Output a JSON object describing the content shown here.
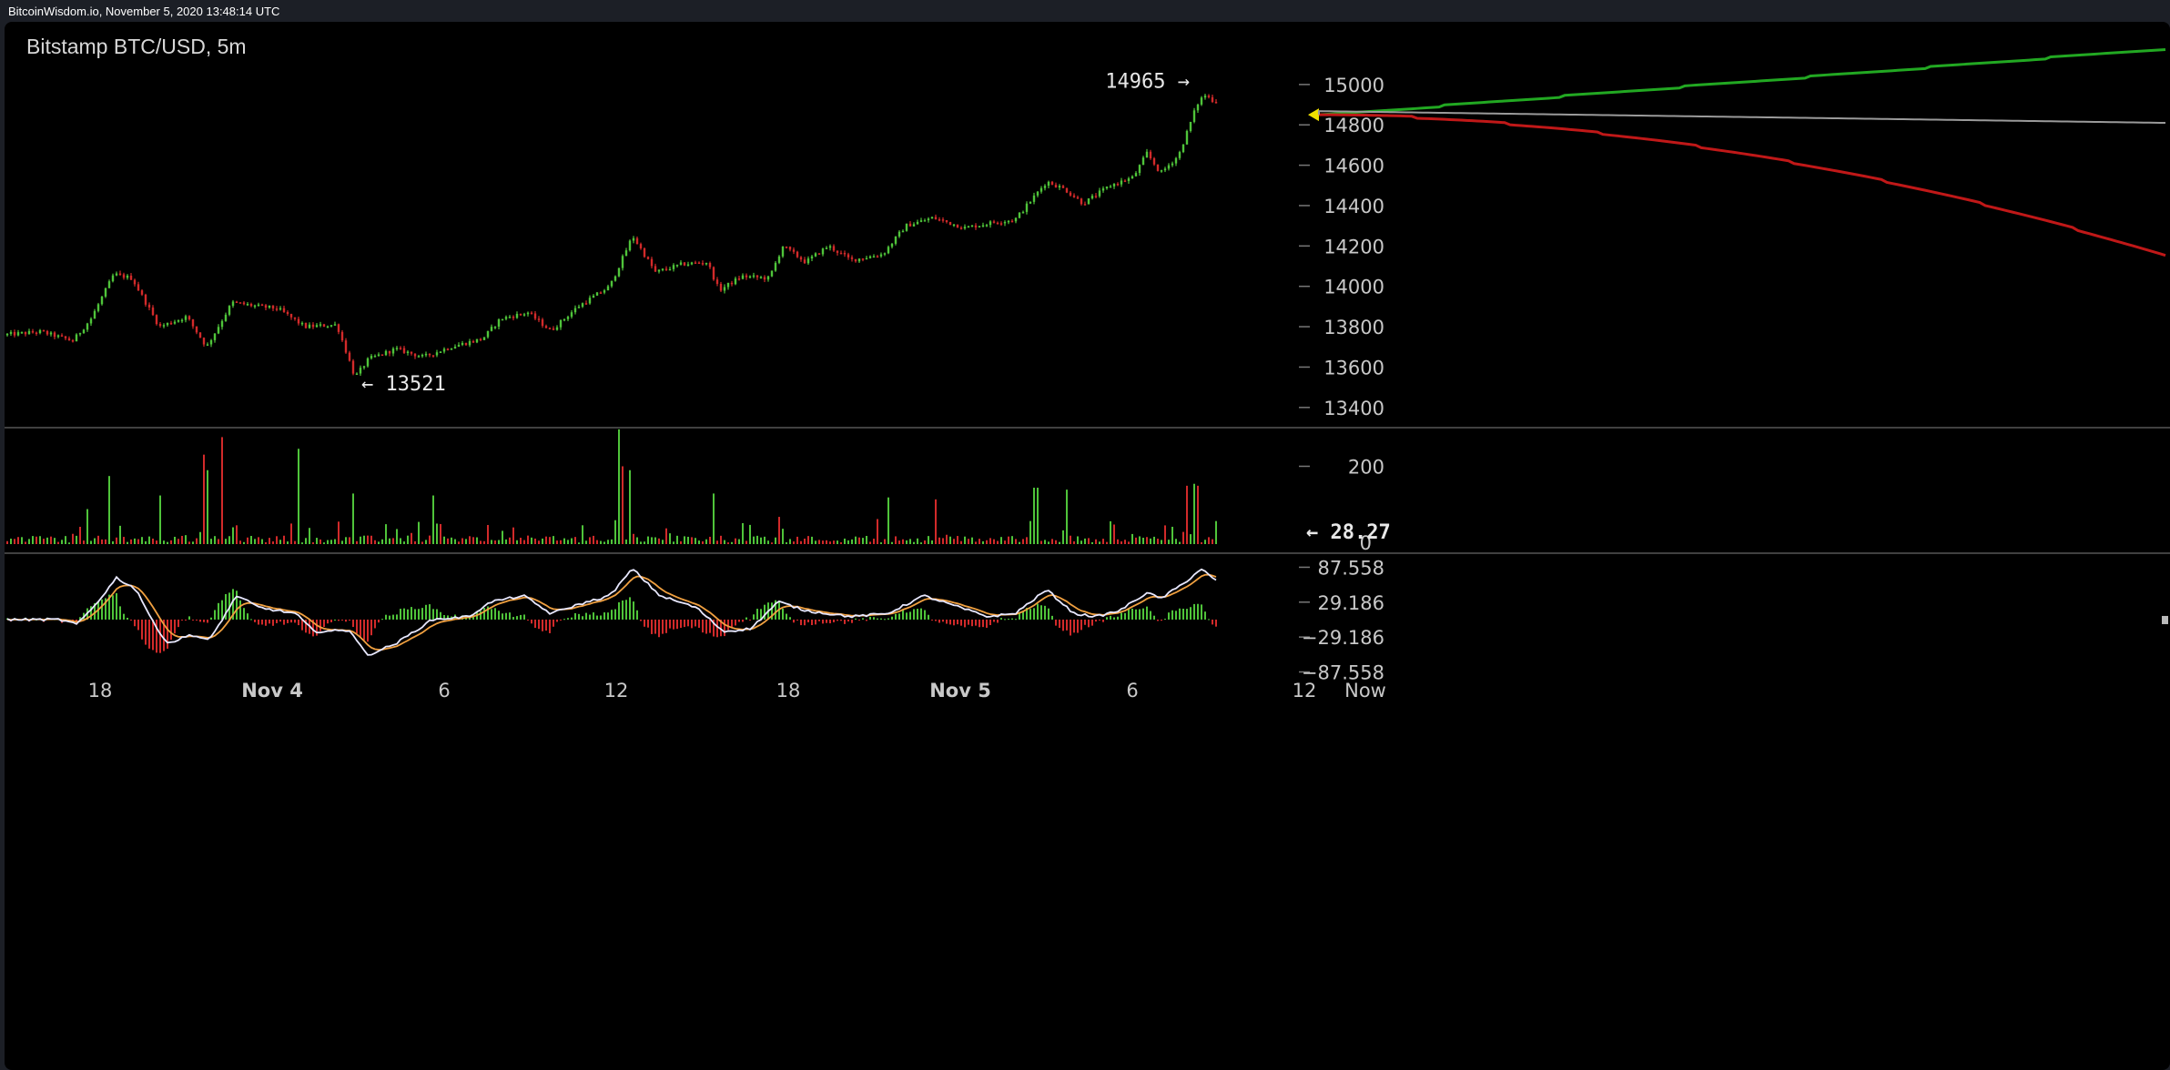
{
  "header": {
    "source_info": "BitcoinWisdom.io, November 5, 2020 13:48:14 UTC",
    "pair_title": "Bitstamp BTC/USD, 5m"
  },
  "colors": {
    "up": "#4fc43a",
    "down": "#d22a2a",
    "background": "#000000",
    "grid": "#2a2a2a",
    "depth_bid": "#22a822",
    "depth_ask": "#c01818",
    "depth_mid": "#9a9a9a",
    "current_marker": "#f0e000",
    "macd_line": "#e8e8ff",
    "signal_line": "#f0a040"
  },
  "chart_data": [
    {
      "type": "candlestick",
      "title": "Bitstamp BTC/USD, 5m",
      "y_ticks": [
        13400,
        13600,
        13800,
        14000,
        14200,
        14400,
        14600,
        14800,
        15000
      ],
      "ylim": [
        13300,
        15130
      ],
      "annotations": [
        {
          "label": "14965",
          "value": 14965,
          "arrow": "→",
          "at_time_label": "Nov 5 ~08:00"
        },
        {
          "label": "13521",
          "value": 13521,
          "arrow": "←",
          "at_time_label": "Nov 4 ~03:00"
        }
      ],
      "anchors": [
        {
          "t": 0,
          "v": 13760
        },
        {
          "t": 40,
          "v": 13775
        },
        {
          "t": 75,
          "v": 13730
        },
        {
          "t": 95,
          "v": 13840
        },
        {
          "t": 120,
          "v": 14060
        },
        {
          "t": 140,
          "v": 14040
        },
        {
          "t": 170,
          "v": 13800
        },
        {
          "t": 200,
          "v": 13850
        },
        {
          "t": 222,
          "v": 13700
        },
        {
          "t": 250,
          "v": 13920
        },
        {
          "t": 280,
          "v": 13900
        },
        {
          "t": 300,
          "v": 13890
        },
        {
          "t": 330,
          "v": 13800
        },
        {
          "t": 365,
          "v": 13810
        },
        {
          "t": 385,
          "v": 13550
        },
        {
          "t": 400,
          "v": 13640
        },
        {
          "t": 430,
          "v": 13690
        },
        {
          "t": 460,
          "v": 13650
        },
        {
          "t": 490,
          "v": 13700
        },
        {
          "t": 525,
          "v": 13740
        },
        {
          "t": 545,
          "v": 13840
        },
        {
          "t": 575,
          "v": 13870
        },
        {
          "t": 600,
          "v": 13780
        },
        {
          "t": 630,
          "v": 13900
        },
        {
          "t": 665,
          "v": 14000
        },
        {
          "t": 690,
          "v": 14250
        },
        {
          "t": 715,
          "v": 14070
        },
        {
          "t": 745,
          "v": 14110
        },
        {
          "t": 772,
          "v": 14120
        },
        {
          "t": 785,
          "v": 13980
        },
        {
          "t": 810,
          "v": 14050
        },
        {
          "t": 840,
          "v": 14040
        },
        {
          "t": 855,
          "v": 14200
        },
        {
          "t": 880,
          "v": 14120
        },
        {
          "t": 905,
          "v": 14200
        },
        {
          "t": 930,
          "v": 14130
        },
        {
          "t": 965,
          "v": 14160
        },
        {
          "t": 990,
          "v": 14300
        },
        {
          "t": 1020,
          "v": 14340
        },
        {
          "t": 1055,
          "v": 14290
        },
        {
          "t": 1090,
          "v": 14320
        },
        {
          "t": 1110,
          "v": 14330
        },
        {
          "t": 1145,
          "v": 14520
        },
        {
          "t": 1165,
          "v": 14480
        },
        {
          "t": 1185,
          "v": 14410
        },
        {
          "t": 1215,
          "v": 14500
        },
        {
          "t": 1240,
          "v": 14540
        },
        {
          "t": 1255,
          "v": 14660
        },
        {
          "t": 1270,
          "v": 14560
        },
        {
          "t": 1290,
          "v": 14650
        },
        {
          "t": 1310,
          "v": 14900
        },
        {
          "t": 1318,
          "v": 14950
        },
        {
          "t": 1328,
          "v": 14920
        }
      ],
      "candle_spacing_px": 4
    },
    {
      "type": "bar",
      "title": "Volume",
      "y_ticks": [
        0,
        200
      ],
      "current_value": "← 28.27",
      "tick_zero_label": "0",
      "ylim": [
        0,
        290
      ],
      "spikes": [
        {
          "t": 90,
          "v": 90
        },
        {
          "t": 116,
          "v": 175
        },
        {
          "t": 170,
          "v": 125
        },
        {
          "t": 218,
          "v": 230
        },
        {
          "t": 222,
          "v": 190
        },
        {
          "t": 240,
          "v": 275
        },
        {
          "t": 323,
          "v": 245
        },
        {
          "t": 383,
          "v": 285
        },
        {
          "t": 385,
          "v": 130
        },
        {
          "t": 470,
          "v": 125
        },
        {
          "t": 677,
          "v": 295
        },
        {
          "t": 681,
          "v": 200
        },
        {
          "t": 686,
          "v": 190
        },
        {
          "t": 779,
          "v": 130
        },
        {
          "t": 852,
          "v": 70
        },
        {
          "t": 970,
          "v": 120
        },
        {
          "t": 1022,
          "v": 115
        },
        {
          "t": 1131,
          "v": 145
        },
        {
          "t": 1137,
          "v": 145
        },
        {
          "t": 1166,
          "v": 140
        },
        {
          "t": 1298,
          "v": 150
        },
        {
          "t": 1308,
          "v": 155
        },
        {
          "t": 1311,
          "v": 150
        }
      ]
    },
    {
      "type": "line",
      "title": "MACD",
      "y_ticks": [
        87.558,
        29.186,
        -29.186,
        -87.558
      ],
      "y_tick_labels": [
        "87.558",
        "29.186",
        "−29.186",
        "−87.558"
      ],
      "ylim": [
        -102,
        108
      ],
      "macd_anchors": [
        {
          "t": 0,
          "v": 0
        },
        {
          "t": 60,
          "v": 0
        },
        {
          "t": 80,
          "v": -8
        },
        {
          "t": 100,
          "v": 25
        },
        {
          "t": 123,
          "v": 70
        },
        {
          "t": 145,
          "v": 50
        },
        {
          "t": 165,
          "v": -10
        },
        {
          "t": 180,
          "v": -40
        },
        {
          "t": 205,
          "v": -25
        },
        {
          "t": 225,
          "v": -35
        },
        {
          "t": 255,
          "v": 40
        },
        {
          "t": 280,
          "v": 20
        },
        {
          "t": 320,
          "v": 10
        },
        {
          "t": 340,
          "v": -20
        },
        {
          "t": 380,
          "v": -18
        },
        {
          "t": 398,
          "v": -60
        },
        {
          "t": 430,
          "v": -40
        },
        {
          "t": 470,
          "v": 0
        },
        {
          "t": 510,
          "v": 5
        },
        {
          "t": 535,
          "v": 30
        },
        {
          "t": 570,
          "v": 40
        },
        {
          "t": 600,
          "v": 10
        },
        {
          "t": 630,
          "v": 25
        },
        {
          "t": 665,
          "v": 40
        },
        {
          "t": 690,
          "v": 85
        },
        {
          "t": 720,
          "v": 40
        },
        {
          "t": 760,
          "v": 20
        },
        {
          "t": 790,
          "v": -20
        },
        {
          "t": 820,
          "v": -15
        },
        {
          "t": 850,
          "v": 30
        },
        {
          "t": 880,
          "v": 15
        },
        {
          "t": 930,
          "v": 5
        },
        {
          "t": 970,
          "v": 10
        },
        {
          "t": 1010,
          "v": 40
        },
        {
          "t": 1050,
          "v": 20
        },
        {
          "t": 1080,
          "v": 5
        },
        {
          "t": 1110,
          "v": 10
        },
        {
          "t": 1145,
          "v": 50
        },
        {
          "t": 1175,
          "v": 10
        },
        {
          "t": 1200,
          "v": 5
        },
        {
          "t": 1225,
          "v": 15
        },
        {
          "t": 1255,
          "v": 45
        },
        {
          "t": 1270,
          "v": 35
        },
        {
          "t": 1295,
          "v": 60
        },
        {
          "t": 1315,
          "v": 85
        },
        {
          "t": 1330,
          "v": 65
        }
      ]
    }
  ],
  "x_axis": {
    "ticks": [
      {
        "t": 105,
        "label": "18"
      },
      {
        "t": 294,
        "label": "Nov 4"
      },
      {
        "t": 483,
        "label": "6"
      },
      {
        "t": 672,
        "label": "12"
      },
      {
        "t": 861,
        "label": "18"
      },
      {
        "t": 1050,
        "label": "Nov 5"
      },
      {
        "t": 1239,
        "label": "6"
      },
      {
        "t": 1428,
        "label": "12"
      }
    ],
    "now_label": "Now"
  }
}
